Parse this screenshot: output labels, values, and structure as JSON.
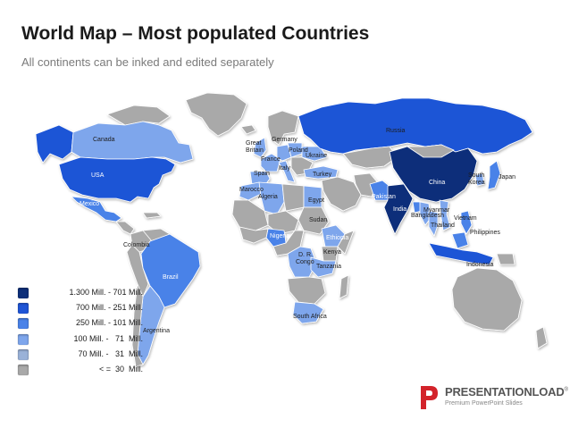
{
  "header": {
    "title": "World Map – Most populated Countries",
    "subtitle": "All continents can be inked and edited separately"
  },
  "colors": {
    "tier1": "#0d2f7a",
    "tier2": "#1f55d6",
    "tier3": "#4a82e8",
    "tier4": "#7ea6ec",
    "tier5": "#9ab2d8",
    "tier6": "#a9a9a9",
    "brand_red": "#d3232a"
  },
  "map": {
    "country_labels": {
      "russia": "Russia",
      "canada": "Canada",
      "usa": "USA",
      "mexico": "Mexico",
      "colombia": "Colombia",
      "brazil": "Brazil",
      "argentina": "Argentina",
      "great_britain": "Great\nBritain",
      "france": "France",
      "germany": "Germany",
      "poland": "Poland",
      "ukraine": "Ukraine",
      "spain": "Spain",
      "italy": "Italy",
      "turkey": "Turkey",
      "marocco": "Marocco",
      "algeria": "Algeria",
      "egypt": "Egypt",
      "sudan": "Sudan",
      "nigeria": "Nigeria",
      "ethiopia": "Ethiopia",
      "kenya": "Kenya",
      "dr_congo": "D. R.\nCongo",
      "tanzania": "Tanzania",
      "south_africa": "South Africa",
      "pakistan": "Pakistan",
      "india": "India",
      "china": "China",
      "south_korea": "South\nKorea",
      "japan": "Japan",
      "myanmar": "Myanmar",
      "bangladesh": "Bangladesh",
      "thailand": "Thailand",
      "vietnam": "Vietnam",
      "philippines": "Philippines",
      "indonesia": "Indonesia"
    }
  },
  "legend": {
    "items": [
      {
        "label": "1.300 Mill. - 701 Mill.",
        "color": "#0d2f7a"
      },
      {
        "label": "700 Mill. - 251 Mill.",
        "color": "#1f55d6"
      },
      {
        "label": "250 Mill. - 101 Mill.",
        "color": "#4a82e8"
      },
      {
        "label": "100 Mill. -   71  Mill.",
        "color": "#7ea6ec"
      },
      {
        "label": "70 Mill. -   31  Mill.",
        "color": "#9ab2d8"
      },
      {
        "label": "< =  30  Mill.",
        "color": "#a9a9a9"
      }
    ]
  },
  "brand": {
    "name": "PRESENTATIONLOAD",
    "registered": "®",
    "tagline": "Premium PowerPoint Slides"
  }
}
